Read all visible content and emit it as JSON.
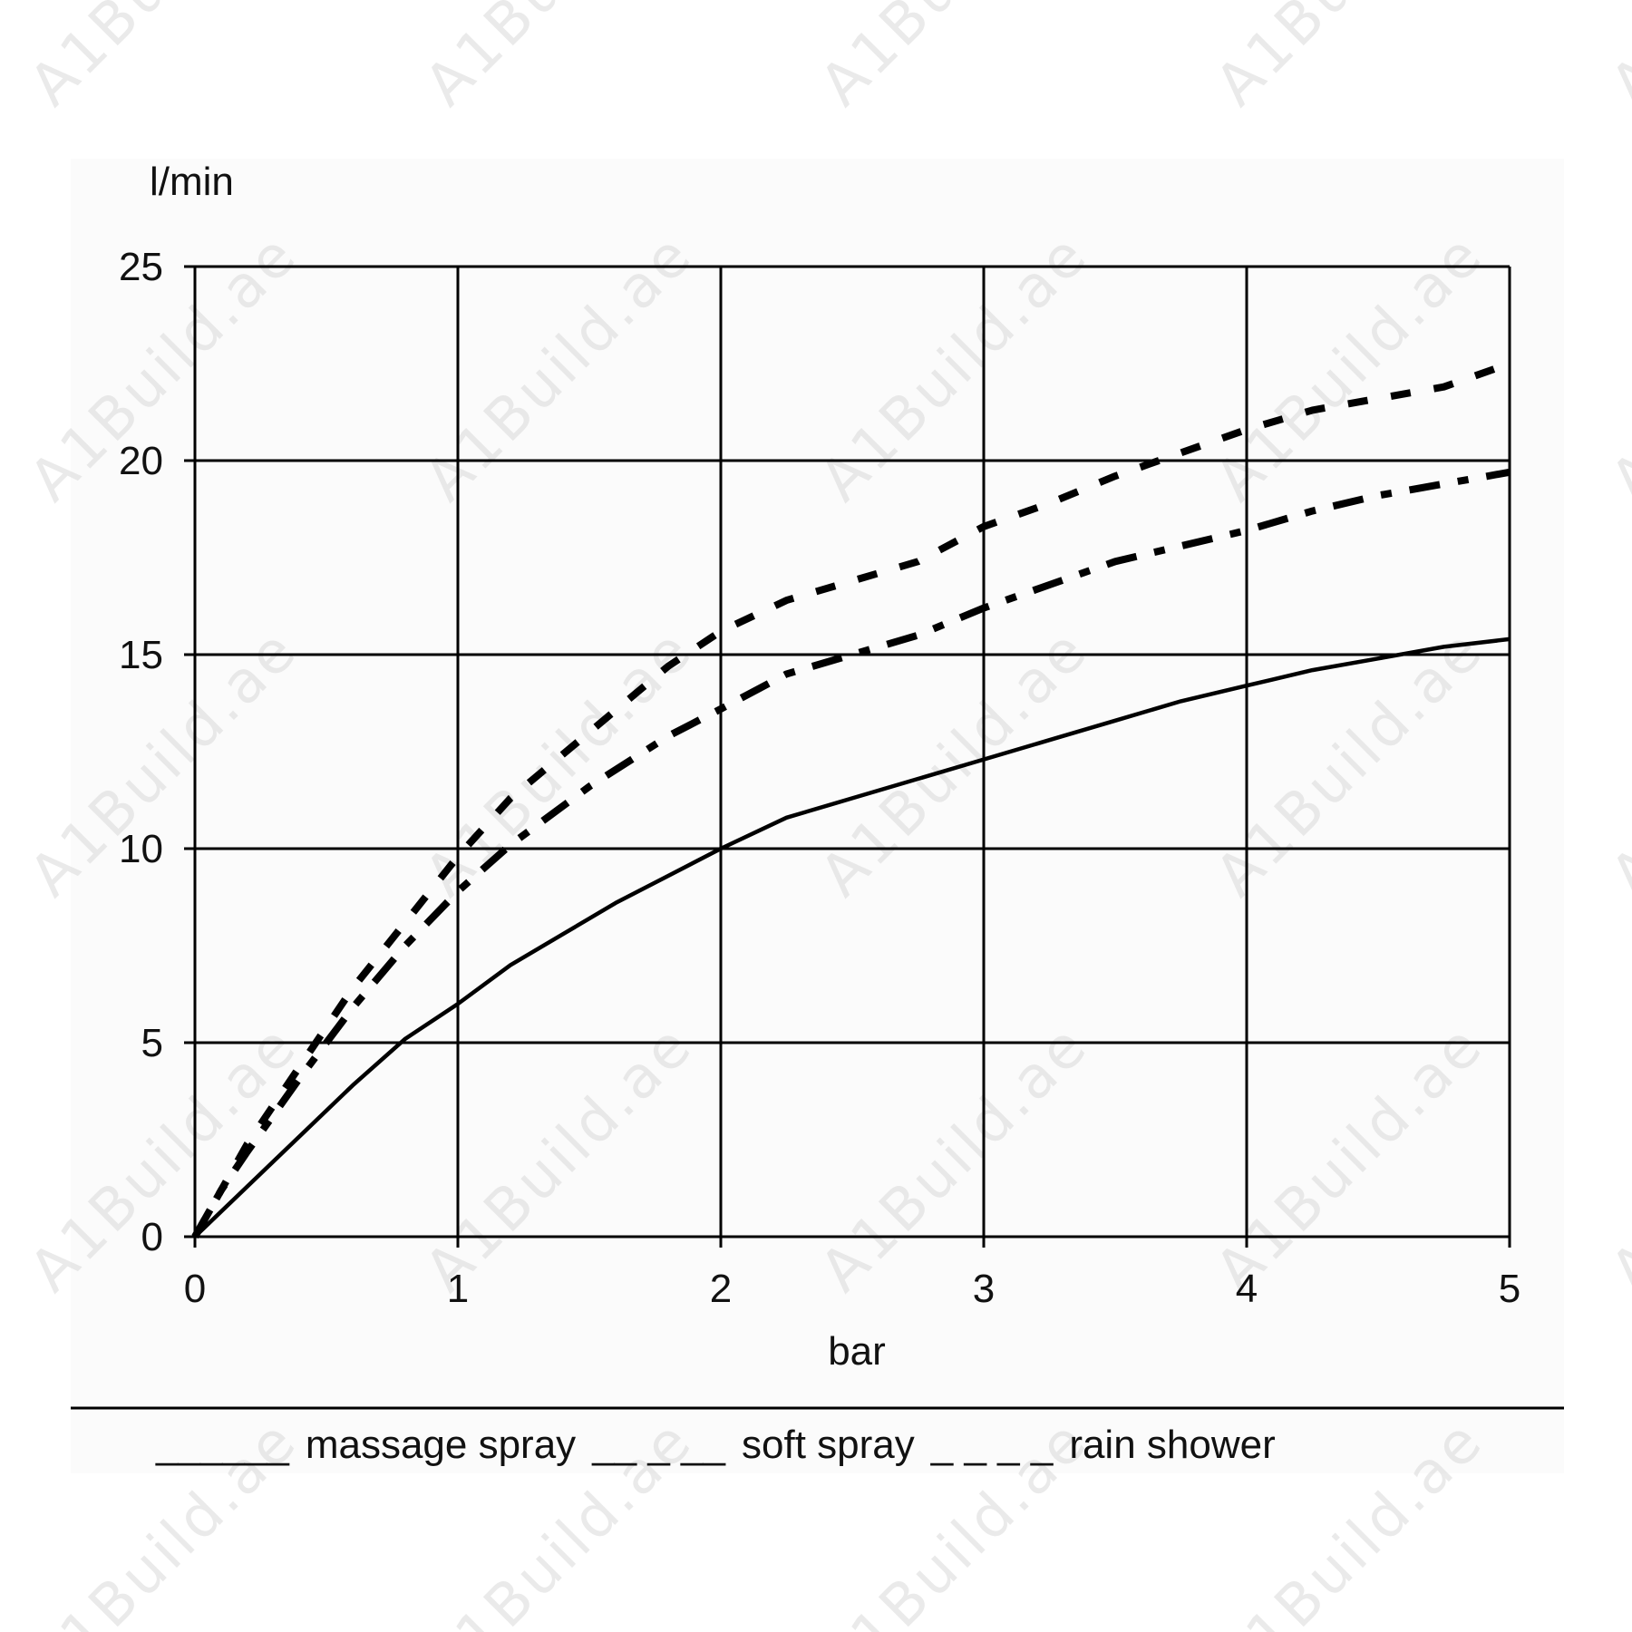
{
  "watermark": {
    "text": "A1Build.ae",
    "color": "#cfcfcf"
  },
  "chart_data": {
    "type": "line",
    "title": "",
    "xlabel": "bar",
    "ylabel": "l/min",
    "xlim": [
      0,
      5
    ],
    "ylim": [
      0,
      25
    ],
    "xticks": [
      "0",
      "1",
      "2",
      "3",
      "4",
      "5"
    ],
    "yticks": [
      "0",
      "5",
      "10",
      "15",
      "20",
      "25"
    ],
    "grid": true,
    "legend_position": "bottom",
    "colors": {
      "line": "#000000",
      "grid": "#000000",
      "background": "#fbfbfb"
    },
    "series": [
      {
        "name": "massage spray",
        "style": "solid",
        "legend_marker": "______",
        "x": [
          0,
          0.2,
          0.4,
          0.6,
          0.8,
          1.0,
          1.2,
          1.4,
          1.6,
          1.8,
          2.0,
          2.25,
          2.5,
          2.75,
          3.0,
          3.25,
          3.5,
          3.75,
          4.0,
          4.25,
          4.5,
          4.75,
          5.0
        ],
        "y": [
          0,
          1.3,
          2.6,
          3.9,
          5.1,
          6.0,
          7.0,
          7.8,
          8.6,
          9.3,
          10.0,
          10.8,
          11.3,
          11.8,
          12.3,
          12.8,
          13.3,
          13.8,
          14.2,
          14.6,
          14.9,
          15.2,
          15.4
        ]
      },
      {
        "name": "soft spray",
        "style": "dashdot",
        "legend_marker": "__ _ __",
        "x": [
          0,
          0.1,
          0.2,
          0.4,
          0.6,
          0.8,
          1.0,
          1.2,
          1.5,
          1.8,
          2.0,
          2.25,
          2.5,
          2.75,
          3.0,
          3.25,
          3.5,
          3.75,
          4.0,
          4.25,
          4.5,
          4.75,
          5.0
        ],
        "y": [
          0,
          1.2,
          2.2,
          4.1,
          5.9,
          7.5,
          8.9,
          10.1,
          11.6,
          12.9,
          13.6,
          14.5,
          15.0,
          15.5,
          16.2,
          16.8,
          17.4,
          17.8,
          18.2,
          18.7,
          19.1,
          19.4,
          19.7
        ]
      },
      {
        "name": "rain shower",
        "style": "dashed",
        "legend_marker": "_ _ _ _",
        "x": [
          0,
          0.2,
          0.4,
          0.6,
          0.8,
          1.0,
          1.2,
          1.5,
          1.8,
          2.0,
          2.25,
          2.5,
          2.75,
          3.0,
          3.25,
          3.5,
          3.75,
          4.0,
          4.25,
          4.5,
          4.75,
          5.0
        ],
        "y": [
          0,
          2.4,
          4.4,
          6.4,
          8.1,
          9.8,
          11.3,
          13.0,
          14.7,
          15.6,
          16.4,
          16.9,
          17.4,
          18.3,
          18.9,
          19.6,
          20.2,
          20.8,
          21.3,
          21.6,
          21.9,
          22.5
        ]
      }
    ]
  }
}
